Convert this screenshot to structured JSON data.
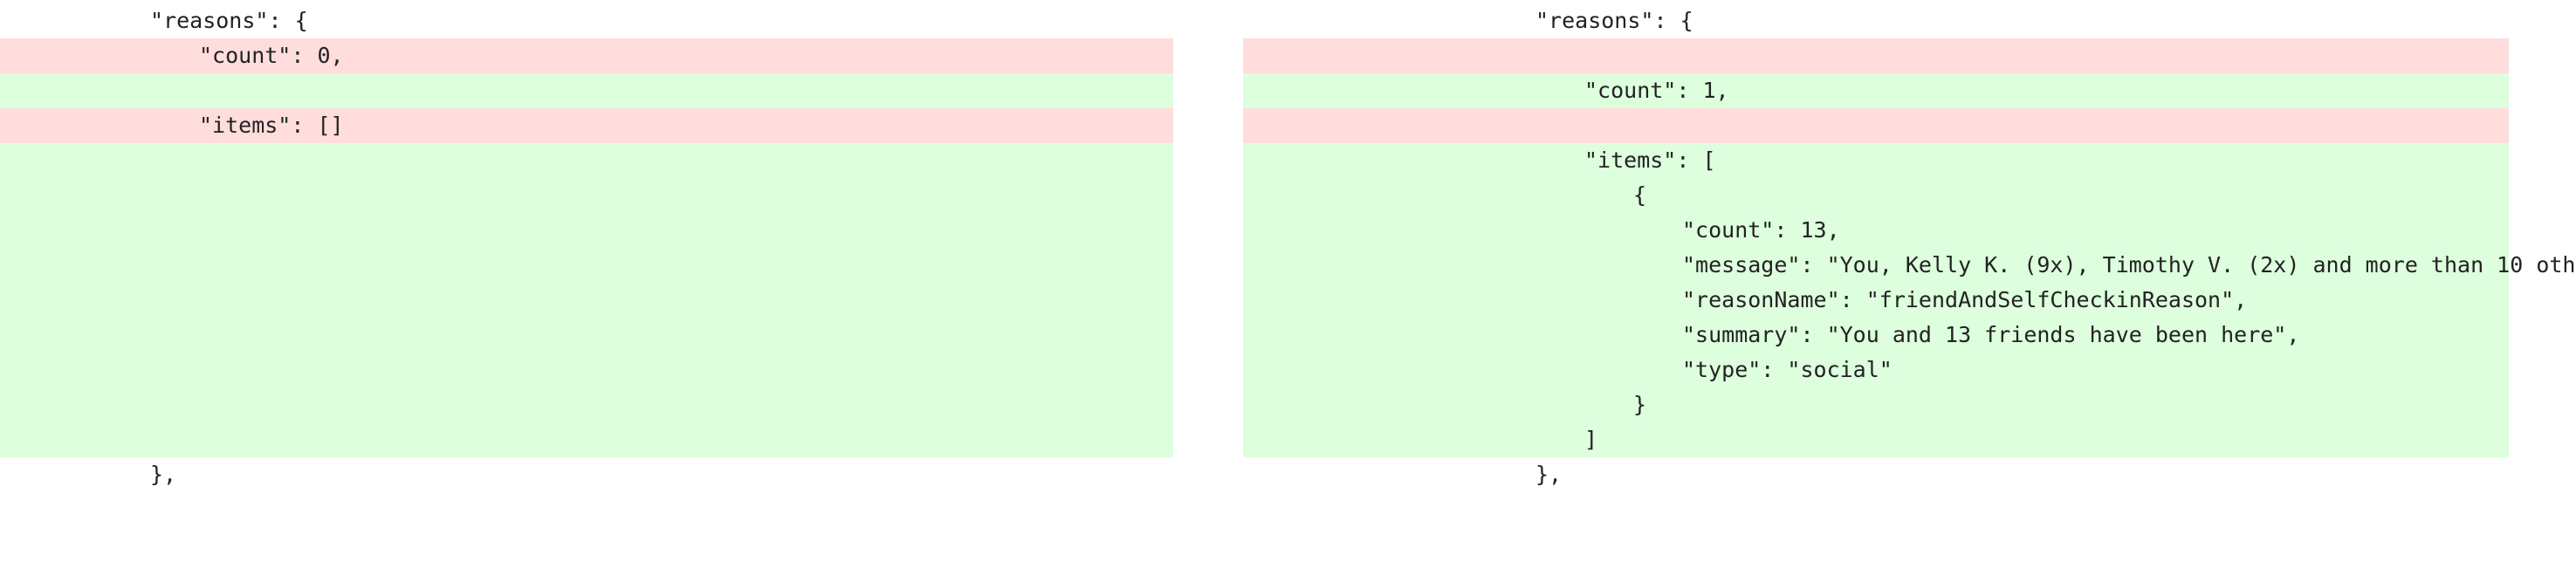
{
  "colors": {
    "removed_bg": "#ffdddd",
    "added_bg": "#ddffdd",
    "text": "#222222"
  },
  "left": {
    "reasons_open": "\"reasons\": {",
    "count_line": "\"count\": 0,",
    "items_line": "\"items\": []",
    "close_line": "},"
  },
  "right": {
    "reasons_open": "\"reasons\": {",
    "count_line": "\"count\": 1,",
    "items_open": "\"items\": [",
    "obj_open": "{",
    "obj_count": "\"count\": 13,",
    "obj_message": "\"message\": \"You, Kelly K. (9x), Timothy V. (2x) and more than 10 oth",
    "obj_reason_name": "\"reasonName\": \"friendAndSelfCheckinReason\",",
    "obj_summary": "\"summary\": \"You and 13 friends have been here\",",
    "obj_type": "\"type\": \"social\"",
    "obj_close": "}",
    "items_close": "]",
    "close_line": "},"
  }
}
